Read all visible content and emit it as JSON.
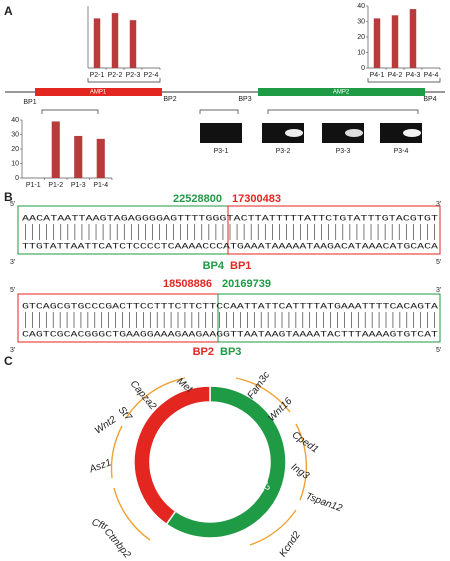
{
  "panel_labels": [
    "A",
    "B",
    "C"
  ],
  "chart_data": [
    {
      "type": "bar",
      "categories": [
        "P2-1",
        "P2-2",
        "P2-3",
        "P2-4"
      ],
      "values": [
        28,
        31,
        27,
        0
      ],
      "color": "#b83a3a",
      "ylim": [
        0,
        35
      ]
    },
    {
      "type": "bar",
      "categories": [
        "P4-1",
        "P4-2",
        "P4-3",
        "P4-4"
      ],
      "values": [
        32,
        34,
        38,
        0
      ],
      "color": "#b83a3a",
      "ylim": [
        0,
        40
      ],
      "yticks": [
        0,
        10,
        20,
        30,
        40
      ]
    },
    {
      "type": "bar",
      "categories": [
        "P1-1",
        "P1-2",
        "P1-3",
        "P1-4"
      ],
      "values": [
        0,
        39,
        29,
        27
      ],
      "color": "#b83a3a",
      "ylim": [
        0,
        40
      ],
      "yticks": [
        0,
        10,
        20,
        30,
        40
      ]
    }
  ],
  "genome": {
    "amplicons": [
      "AMP1",
      "AMP2"
    ],
    "breakpoints": [
      "BP1",
      "BP2",
      "BP3",
      "BP4"
    ]
  },
  "gel": {
    "lanes": [
      "P3-1",
      "P3-2",
      "P3-3",
      "P3-4"
    ]
  },
  "ends": [
    "5'",
    "3'"
  ],
  "junctions": [
    {
      "left_position": 22528800,
      "right_position": 17300483,
      "top": "AACATAATTAAGTAGAGGGGAGTTTTGGGTACTTATTTTTATTCTGTATTTGTACGTGT",
      "bottom": "TTGTATTAATTCATCTCCCCTCAAAACCCATGAAATAAAAATAAGACATAAACATGCACA",
      "left_label": "BP4",
      "right_label": "BP1"
    },
    {
      "left_position": 18508886,
      "right_position": 20169739,
      "top": "GTCAGCGTGCCCGACTTCCTTTCTTCTTCCAATTATTCATTTTATGAAATTTTCACAGTA",
      "bottom": "CAGTCGCACGGGCTGAAGGAAAGAAGAAGGTTAATAAGTAAAATACTTTAAAAGTGTCAT",
      "left_label": "BP2",
      "right_label": "BP3"
    }
  ],
  "circle": {
    "segments": [
      "AMP1",
      "AMP2"
    ],
    "genes": [
      "Met",
      "Capza2",
      "St7",
      "Wnt2",
      "Asz1",
      "Cftr",
      "Cttnbp2",
      "Fam3c",
      "Wnt16",
      "Cped1",
      "Ing3",
      "Tspan12",
      "Kcnd2"
    ]
  }
}
